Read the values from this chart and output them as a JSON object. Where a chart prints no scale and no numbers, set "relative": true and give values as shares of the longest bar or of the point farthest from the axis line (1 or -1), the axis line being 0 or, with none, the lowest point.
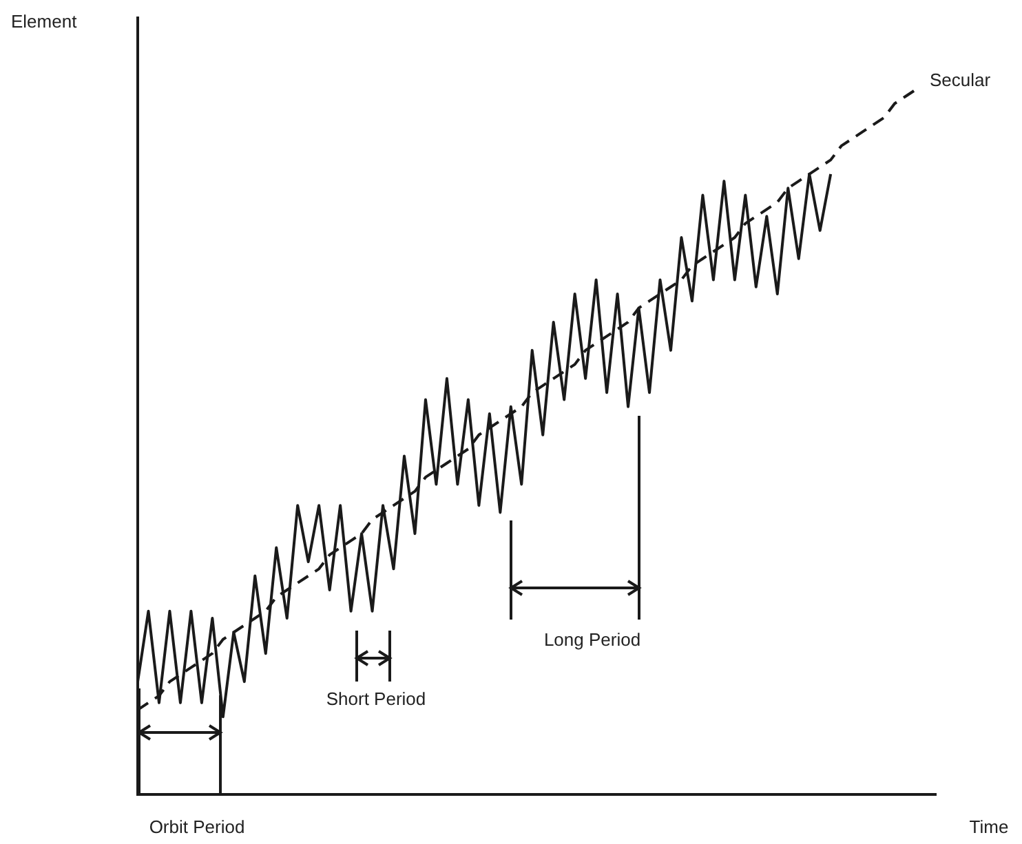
{
  "chart_data": {
    "type": "line",
    "relative": true,
    "xlabel": "Time",
    "ylabel": "Element",
    "marker": "none",
    "categories": [
      null,
      null,
      null,
      null,
      null,
      null,
      null,
      null,
      null,
      null,
      null,
      null,
      null,
      null,
      null,
      null,
      null,
      null,
      null,
      null,
      null,
      null,
      null,
      null,
      null,
      null,
      null,
      null,
      null,
      null,
      null,
      null,
      null,
      null,
      null,
      null,
      null,
      null,
      null,
      null,
      null,
      null,
      null,
      null,
      null,
      null,
      null,
      null,
      null,
      null,
      null,
      null,
      null,
      null,
      null,
      null,
      null,
      null,
      null,
      null,
      null,
      null,
      null,
      null,
      null,
      null,
      null,
      null,
      null,
      null,
      null,
      null,
      null,
      null
    ],
    "series": [
      {
        "color": "#1a1a1a",
        "line_style": "solid",
        "values": [
          0.16,
          0.26,
          0.13,
          0.26,
          0.13,
          0.26,
          0.13,
          0.25,
          0.11,
          0.23,
          0.16,
          0.31,
          0.2,
          0.35,
          0.25,
          0.41,
          0.33,
          0.41,
          0.29,
          0.41,
          0.26,
          0.37,
          0.26,
          0.41,
          0.32,
          0.48,
          0.37,
          0.56,
          0.44,
          0.59,
          0.44,
          0.56,
          0.41,
          0.54,
          0.4,
          0.55,
          0.44,
          0.63,
          0.51,
          0.67,
          0.56,
          0.71,
          0.59,
          0.73,
          0.57,
          0.71,
          0.55,
          0.69,
          0.57,
          0.73,
          0.63,
          0.79,
          0.7,
          0.85,
          0.73,
          0.87,
          0.73,
          0.85,
          0.72,
          0.82,
          0.71,
          0.86,
          0.76,
          0.88,
          0.8,
          0.88,
          null,
          null,
          null,
          null,
          null,
          null,
          null,
          null
        ]
      },
      {
        "name": "Secular",
        "color": "#1a1a1a",
        "line_style": "dashed",
        "values": [
          0.12,
          0.13,
          0.14,
          0.16,
          0.17,
          0.18,
          0.19,
          0.2,
          0.22,
          0.23,
          0.24,
          0.25,
          0.26,
          0.28,
          0.29,
          0.3,
          0.31,
          0.32,
          0.34,
          0.35,
          0.36,
          0.37,
          0.39,
          0.4,
          0.41,
          0.42,
          0.43,
          0.45,
          0.46,
          0.47,
          0.48,
          0.49,
          0.51,
          0.52,
          0.53,
          0.54,
          0.55,
          0.57,
          0.58,
          0.59,
          0.6,
          0.61,
          0.63,
          0.64,
          0.65,
          0.66,
          0.67,
          0.69,
          0.7,
          0.71,
          0.72,
          0.73,
          0.75,
          0.76,
          0.77,
          0.78,
          0.79,
          0.81,
          0.82,
          0.83,
          0.84,
          0.86,
          0.87,
          0.88,
          0.89,
          0.9,
          0.92,
          0.93,
          0.94,
          0.95,
          0.96,
          0.98,
          0.99,
          1.0
        ]
      }
    ],
    "annotations": [
      "Short Period",
      "Long Period",
      "Orbit Period"
    ]
  }
}
